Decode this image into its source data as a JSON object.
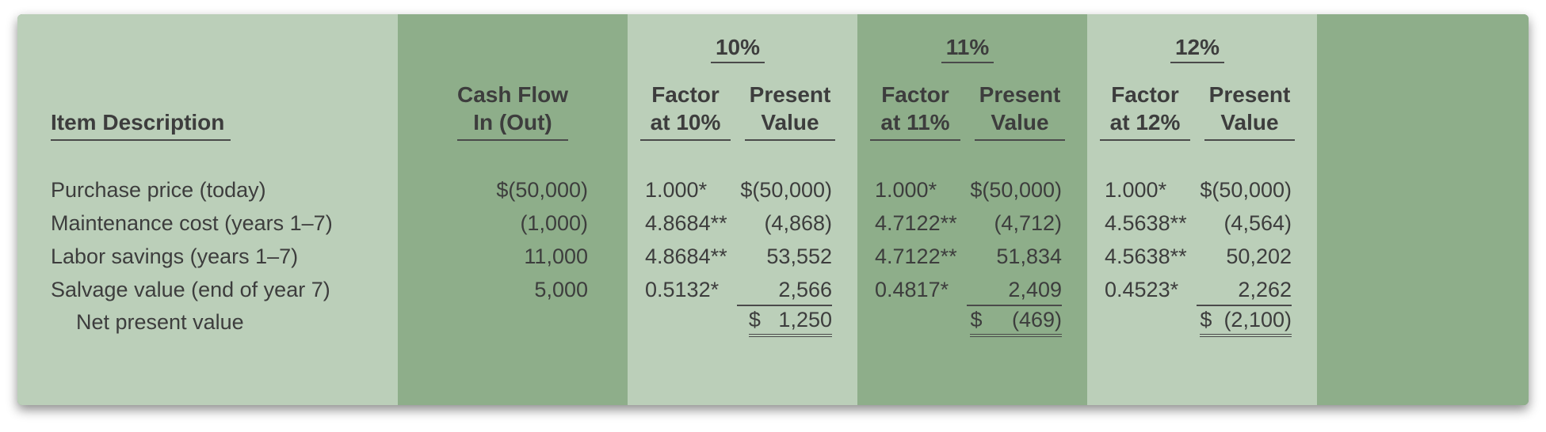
{
  "colors": {
    "light": "#bbcfb9",
    "dark": "#8eae8a",
    "text": "#3d3d3d",
    "rule": "#4a4a4a"
  },
  "font": {
    "family": "sans-serif",
    "header_size_pt": 21,
    "body_size_pt": 20
  },
  "headers": {
    "item": "Item Description",
    "cashflow": "Cash Flow\nIn (Out)",
    "cashflow_l1": "Cash Flow",
    "cashflow_l2": "In (Out)",
    "rate10": "10%",
    "rate11": "11%",
    "rate12": "12%",
    "factor10": "Factor\nat 10%",
    "factor11": "Factor\nat 11%",
    "factor12": "Factor\nat 12%",
    "factor10_l1": "Factor",
    "factor10_l2": "at 10%",
    "factor11_l1": "Factor",
    "factor11_l2": "at 11%",
    "factor12_l1": "Factor",
    "factor12_l2": "at 12%",
    "pv": "Present\nValue",
    "pv_l1": "Present",
    "pv_l2": "Value"
  },
  "rows": [
    {
      "desc": "Purchase price (today)",
      "cash": "$(50,000)",
      "r10": {
        "f": "1.000*",
        "v": "$(50,000)"
      },
      "r11": {
        "f": "1.000*",
        "v": "$(50,000)"
      },
      "r12": {
        "f": "1.000*",
        "v": "$(50,000)"
      }
    },
    {
      "desc": "Maintenance cost (years 1–7)",
      "cash": "(1,000)",
      "r10": {
        "f": "4.8684**",
        "v": "(4,868)"
      },
      "r11": {
        "f": "4.7122**",
        "v": "(4,712)"
      },
      "r12": {
        "f": "4.5638**",
        "v": "(4,564)"
      }
    },
    {
      "desc": "Labor savings (years 1–7)",
      "cash": "11,000",
      "r10": {
        "f": "4.8684**",
        "v": "53,552"
      },
      "r11": {
        "f": "4.7122**",
        "v": "51,834"
      },
      "r12": {
        "f": "4.5638**",
        "v": "50,202"
      }
    },
    {
      "desc": "Salvage value (end of year 7)",
      "cash": "5,000",
      "r10": {
        "f": "0.5132*",
        "v": "2,566"
      },
      "r11": {
        "f": "0.4817*",
        "v": "2,409"
      },
      "r12": {
        "f": "0.4523*",
        "v": "2,262"
      }
    }
  ],
  "npv": {
    "label": "Net present value",
    "r10": "$   1,250",
    "r11": "$     (469)",
    "r12": "$  (2,100)"
  }
}
